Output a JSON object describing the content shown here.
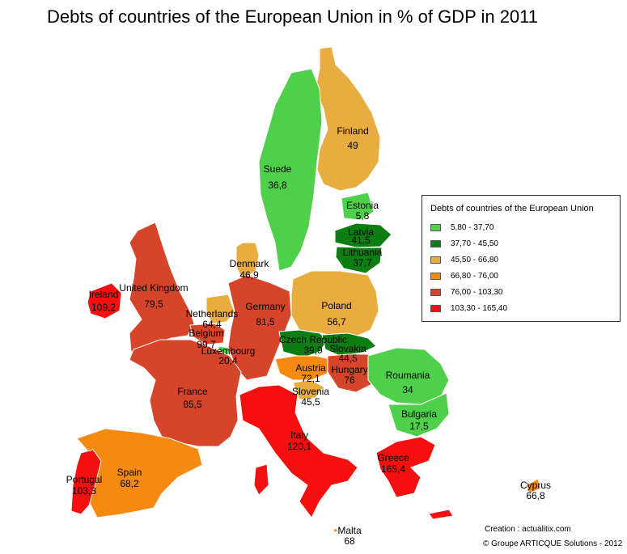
{
  "title": "Debts of countries of the European Union in % of GDP in 2011",
  "legend": {
    "title": "Debts of countries of the European Union",
    "classes": [
      {
        "label": "5,80 - 37,70",
        "color": "#4fd04a"
      },
      {
        "label": "37,70 - 45,50",
        "color": "#0d7f12"
      },
      {
        "label": "45,50 - 66,80",
        "color": "#e8ac3f"
      },
      {
        "label": "66,80 - 76,00",
        "color": "#f58a13"
      },
      {
        "label": "76,00 - 103,30",
        "color": "#d6442a"
      },
      {
        "label": "103,30 - 165,40",
        "color": "#f50f0f"
      }
    ]
  },
  "countries": [
    {
      "id": "finland",
      "name": "Finland",
      "value": "49",
      "cls": 2
    },
    {
      "id": "suede",
      "name": "Suede",
      "value": "36,8",
      "cls": 0
    },
    {
      "id": "estonia",
      "name": "Estonia",
      "value": "5,8",
      "cls": 0
    },
    {
      "id": "latvia",
      "name": "Latvia",
      "value": "41,5",
      "cls": 1
    },
    {
      "id": "lithuania",
      "name": "Lithuania",
      "value": "37,7",
      "cls": 1
    },
    {
      "id": "denmark",
      "name": "Denmark",
      "value": "46,9",
      "cls": 2
    },
    {
      "id": "ireland",
      "name": "Ireland",
      "value": "109,2",
      "cls": 5
    },
    {
      "id": "uk",
      "name": "United Kingdom",
      "value": "79,5",
      "cls": 4
    },
    {
      "id": "netherlands",
      "name": "Netherlands",
      "value": "64,4",
      "cls": 2
    },
    {
      "id": "belgium",
      "name": "Belgium",
      "value": "99,7",
      "cls": 4
    },
    {
      "id": "luxembourg",
      "name": "Luxembourg",
      "value": "20,4",
      "cls": 0
    },
    {
      "id": "germany",
      "name": "Germany",
      "value": "81,5",
      "cls": 4
    },
    {
      "id": "poland",
      "name": "Poland",
      "value": "56,7",
      "cls": 2
    },
    {
      "id": "czech",
      "name": "Czech Republic",
      "value": "39,9",
      "cls": 1
    },
    {
      "id": "slovakia",
      "name": "Slovakia",
      "value": "44,5",
      "cls": 1
    },
    {
      "id": "austria",
      "name": "Austria",
      "value": "72,1",
      "cls": 3
    },
    {
      "id": "hungary",
      "name": "Hungary",
      "value": "76",
      "cls": 4
    },
    {
      "id": "slovenia",
      "name": "Slovenia",
      "value": "45,5",
      "cls": 2
    },
    {
      "id": "romania",
      "name": "Roumania",
      "value": "34",
      "cls": 0
    },
    {
      "id": "bulgaria",
      "name": "Bulgaria",
      "value": "17,5",
      "cls": 0
    },
    {
      "id": "france",
      "name": "France",
      "value": "85,5",
      "cls": 4
    },
    {
      "id": "italy",
      "name": "Italy",
      "value": "120,1",
      "cls": 5
    },
    {
      "id": "spain",
      "name": "Spain",
      "value": "68,2",
      "cls": 3
    },
    {
      "id": "portugal",
      "name": "Portugal",
      "value": "103,3",
      "cls": 5
    },
    {
      "id": "greece",
      "name": "Greece",
      "value": "165,4",
      "cls": 5
    },
    {
      "id": "cyprus",
      "name": "Cyprus",
      "value": "66,8",
      "cls": 3
    },
    {
      "id": "malta",
      "name": "Malta",
      "value": "68",
      "cls": 3
    }
  ],
  "credits": {
    "creation": "Creation : actualitix.com",
    "copyright": "© Groupe ARTICQUE Solutions - 2012"
  }
}
